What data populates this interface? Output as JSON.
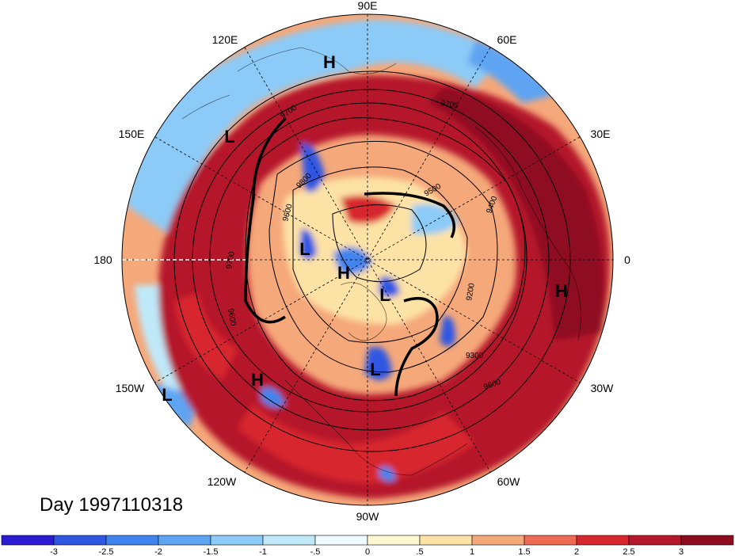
{
  "title": "Day 1997110318",
  "longitude_labels": {
    "lon_90e": "90E",
    "lon_120e": "120E",
    "lon_60e": "60E",
    "lon_150e": "150E",
    "lon_30e": "30E",
    "lon_180": "180",
    "lon_0": "0",
    "lon_150w": "150W",
    "lon_30w": "30W",
    "lon_120w": "120W",
    "lon_60w": "60W",
    "lon_90w": "90W"
  },
  "pressure_centers": [
    {
      "id": "h1",
      "label": "H"
    },
    {
      "id": "l1",
      "label": "L"
    },
    {
      "id": "l2",
      "label": "L"
    },
    {
      "id": "h2",
      "label": "H"
    },
    {
      "id": "l3",
      "label": "L"
    },
    {
      "id": "h3",
      "label": "H"
    },
    {
      "id": "l4",
      "label": "L"
    },
    {
      "id": "h4",
      "label": "H"
    },
    {
      "id": "l5",
      "label": "L"
    }
  ],
  "contour_labels": [
    "9700",
    "9700",
    "9800",
    "9600",
    "9700",
    "9500",
    "9400",
    "9300",
    "9200",
    "9600",
    "9600"
  ],
  "colorbar": {
    "ticks": [
      "-3",
      "-2.5",
      "-2",
      "-1.5",
      "-1",
      "-.5",
      "0",
      ".5",
      "1",
      "1.5",
      "2",
      "2.5",
      "3"
    ],
    "colors": [
      "#2b1bd3",
      "#2f57e2",
      "#3f84ee",
      "#5ea4f2",
      "#8ccbf7",
      "#bfe9f9",
      "#eefaff",
      "#fff6d2",
      "#fde2a6",
      "#f5a87a",
      "#ee6a53",
      "#d8262e",
      "#b5182a",
      "#8e0c20"
    ]
  },
  "colors": {
    "ocean_background": "#d8262e",
    "positive_strong": "#b5182a",
    "negative_strong": "#2f57e2",
    "neutral": "#eefaff"
  }
}
